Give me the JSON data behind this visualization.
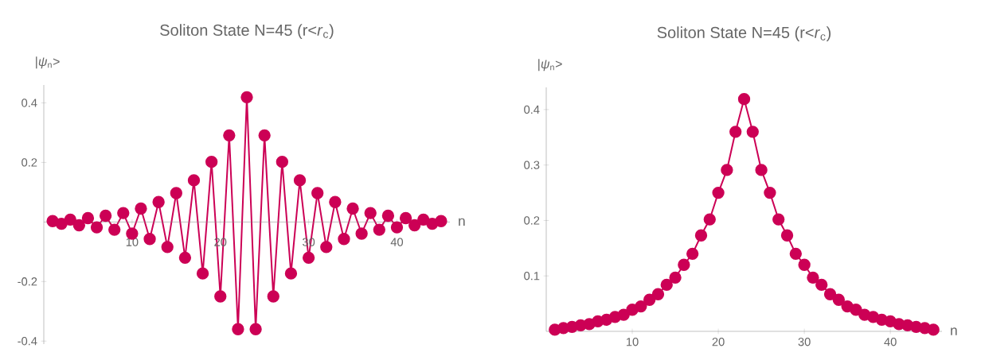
{
  "chart_data": [
    {
      "type": "line",
      "title": "Soliton State N=45 (r<*r*$_{c}$)",
      "xlabel": "n",
      "ylabel": "|*ψ*$_{n}$>",
      "marker": "circle",
      "line_style": "solid",
      "x": [
        1,
        2,
        3,
        4,
        5,
        6,
        7,
        8,
        9,
        10,
        11,
        12,
        13,
        14,
        15,
        16,
        17,
        18,
        19,
        20,
        21,
        22,
        23,
        24,
        25,
        26,
        27,
        28,
        29,
        30,
        31,
        32,
        33,
        34,
        35,
        36,
        37,
        38,
        39,
        40,
        41,
        42,
        43,
        44,
        45
      ],
      "series": [
        {
          "color": "#cc0055",
          "values": [
            0.003,
            -0.006,
            0.008,
            -0.011,
            0.013,
            -0.018,
            0.021,
            -0.026,
            0.03,
            -0.039,
            0.045,
            -0.057,
            0.067,
            -0.084,
            0.097,
            -0.12,
            0.14,
            -0.173,
            0.202,
            -0.25,
            0.291,
            -0.36,
            0.419,
            -0.36,
            0.291,
            -0.25,
            0.202,
            -0.173,
            0.14,
            -0.12,
            0.097,
            -0.084,
            0.067,
            -0.057,
            0.045,
            -0.039,
            0.03,
            -0.026,
            0.021,
            -0.018,
            0.013,
            -0.011,
            0.008,
            -0.006,
            0.003
          ]
        }
      ],
      "xlim": [
        0,
        46
      ],
      "ylim": [
        -0.41,
        0.46
      ],
      "xticks": [
        10,
        20,
        30,
        40
      ],
      "yticks": [
        -0.4,
        -0.2,
        0.2,
        0.4
      ]
    },
    {
      "type": "line",
      "title": "Soliton State N=45 (r<*r*$_{c}$)",
      "xlabel": "n",
      "ylabel": "|*ψ*$_{n}$>",
      "marker": "circle",
      "line_style": "solid",
      "x": [
        1,
        2,
        3,
        4,
        5,
        6,
        7,
        8,
        9,
        10,
        11,
        12,
        13,
        14,
        15,
        16,
        17,
        18,
        19,
        20,
        21,
        22,
        23,
        24,
        25,
        26,
        27,
        28,
        29,
        30,
        31,
        32,
        33,
        34,
        35,
        36,
        37,
        38,
        39,
        40,
        41,
        42,
        43,
        44,
        45
      ],
      "series": [
        {
          "color": "#cc0055",
          "values": [
            0.003,
            0.006,
            0.008,
            0.011,
            0.013,
            0.018,
            0.021,
            0.026,
            0.03,
            0.039,
            0.045,
            0.057,
            0.067,
            0.084,
            0.097,
            0.12,
            0.14,
            0.173,
            0.202,
            0.25,
            0.291,
            0.36,
            0.419,
            0.36,
            0.291,
            0.25,
            0.202,
            0.173,
            0.14,
            0.12,
            0.097,
            0.084,
            0.067,
            0.057,
            0.045,
            0.039,
            0.03,
            0.026,
            0.021,
            0.018,
            0.013,
            0.011,
            0.008,
            0.006,
            0.003
          ]
        }
      ],
      "xlim": [
        0,
        46
      ],
      "ylim": [
        0,
        0.44
      ],
      "xticks": [
        10,
        20,
        30,
        40
      ],
      "yticks": [
        0.1,
        0.2,
        0.3,
        0.4
      ]
    }
  ]
}
